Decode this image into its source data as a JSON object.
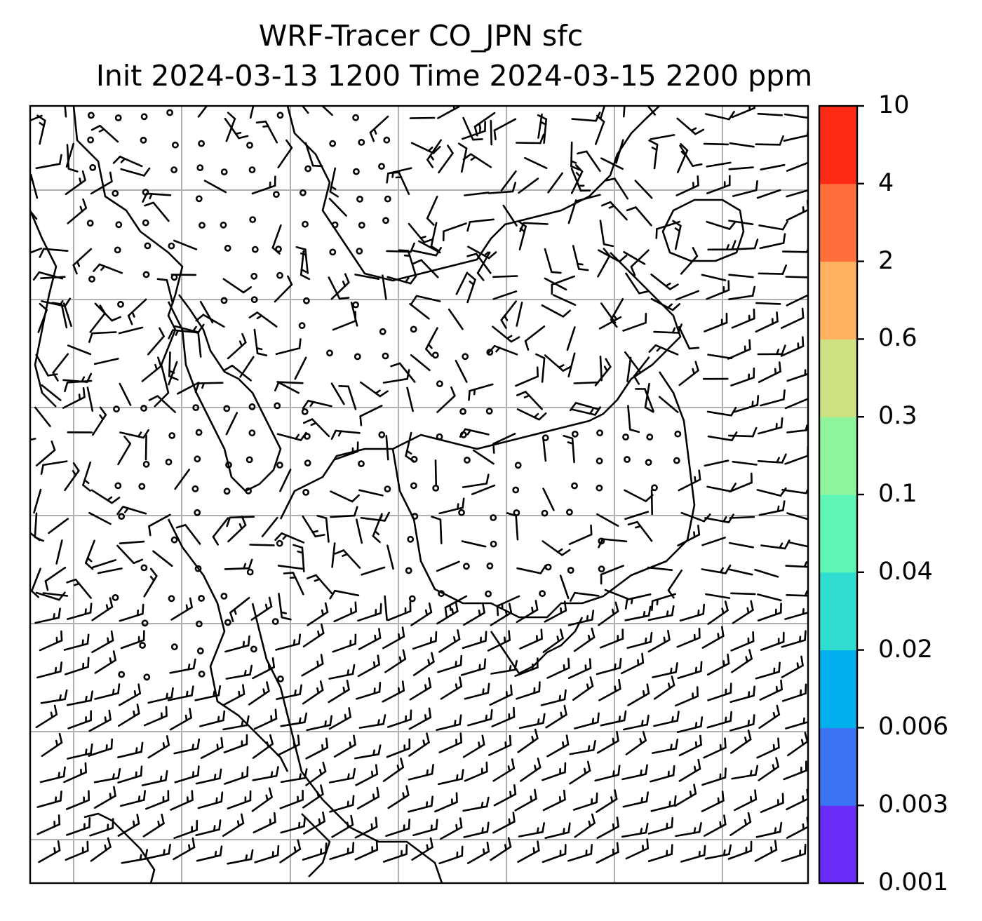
{
  "title": {
    "line1": "WRF-Tracer CO_JPN sfc",
    "line2": "Init 2024-03-13 1200 Time 2024-03-15 2200 ppm"
  },
  "colorbar": {
    "ticks": [
      "0.001",
      "0.003",
      "0.006",
      "0.02",
      "0.04",
      "0.1",
      "0.3",
      "0.6",
      "2",
      "4",
      "10"
    ],
    "colors": [
      "#6a2cf8",
      "#3a74f2",
      "#00b0ec",
      "#30ddd0",
      "#5ef5b7",
      "#8ef59c",
      "#cde183",
      "#ffb061",
      "#ff6e3b",
      "#ff2a13"
    ]
  },
  "map": {
    "gridlines": "on",
    "grid_color": "#b0b0b0",
    "symbols": "wind barbs and calm-wind circles",
    "coastline_color": "#000000"
  }
}
